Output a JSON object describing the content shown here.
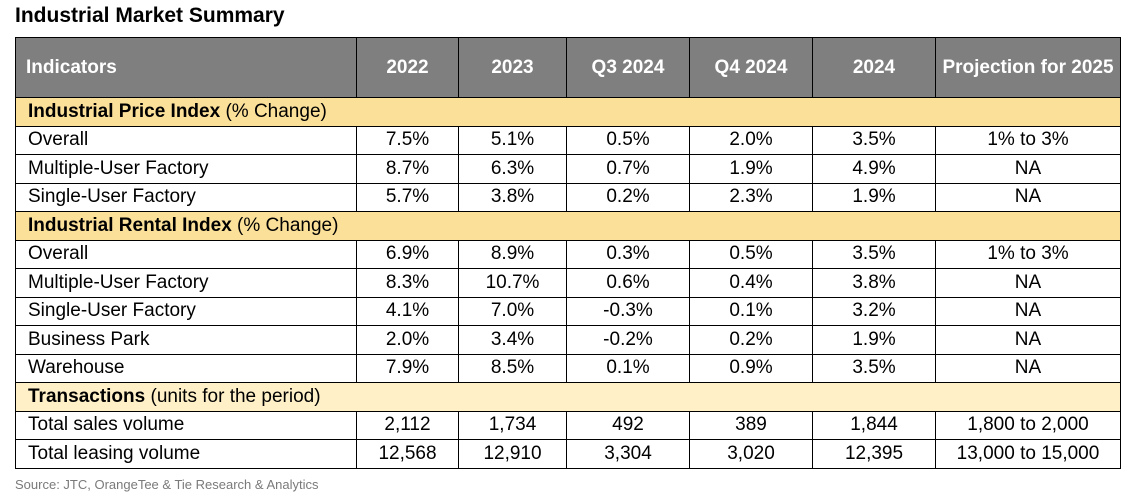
{
  "title": "Industrial Market Summary",
  "columns": [
    "Indicators",
    "2022",
    "2023",
    "Q3 2024",
    "Q4 2024",
    "2024",
    "Projection for 2025"
  ],
  "sections": [
    {
      "title": "Industrial Price Index",
      "note": " (% Change)",
      "rows": [
        [
          "Overall",
          "7.5%",
          "5.1%",
          "0.5%",
          "2.0%",
          "3.5%",
          "1% to 3%"
        ],
        [
          "Multiple-User Factory",
          "8.7%",
          "6.3%",
          "0.7%",
          "1.9%",
          "4.9%",
          "NA"
        ],
        [
          "Single-User Factory",
          "5.7%",
          "3.8%",
          "0.2%",
          "2.3%",
          "1.9%",
          "NA"
        ]
      ]
    },
    {
      "title": "Industrial Rental Index",
      "note": " (% Change)",
      "rows": [
        [
          "Overall",
          "6.9%",
          "8.9%",
          "0.3%",
          "0.5%",
          "3.5%",
          "1% to 3%"
        ],
        [
          "Multiple-User Factory",
          "8.3%",
          "10.7%",
          "0.6%",
          "0.4%",
          "3.8%",
          "NA"
        ],
        [
          "Single-User Factory",
          "4.1%",
          "7.0%",
          "-0.3%",
          "0.1%",
          "3.2%",
          "NA"
        ],
        [
          "Business Park",
          "2.0%",
          "3.4%",
          "-0.2%",
          "0.2%",
          "1.9%",
          "NA"
        ],
        [
          "Warehouse",
          "7.9%",
          "8.5%",
          "0.1%",
          "0.9%",
          "3.5%",
          "NA"
        ]
      ]
    },
    {
      "title": "Transactions",
      "note": " (units for the period)",
      "rows": [
        [
          "Total sales volume",
          "2,112",
          "1,734",
          "492",
          "389",
          "1,844",
          "1,800 to 2,000"
        ],
        [
          "Total leasing volume",
          "12,568",
          "12,910",
          "3,304",
          "3,020",
          "12,395",
          "13,000 to 15,000"
        ]
      ]
    }
  ],
  "source": "Source: JTC, OrangeTee & Tie Research & Analytics",
  "colors": {
    "header_bg": "#7f7f7f",
    "section_bg": "#fbe09a",
    "section_bg_light": "#fff0c8"
  }
}
